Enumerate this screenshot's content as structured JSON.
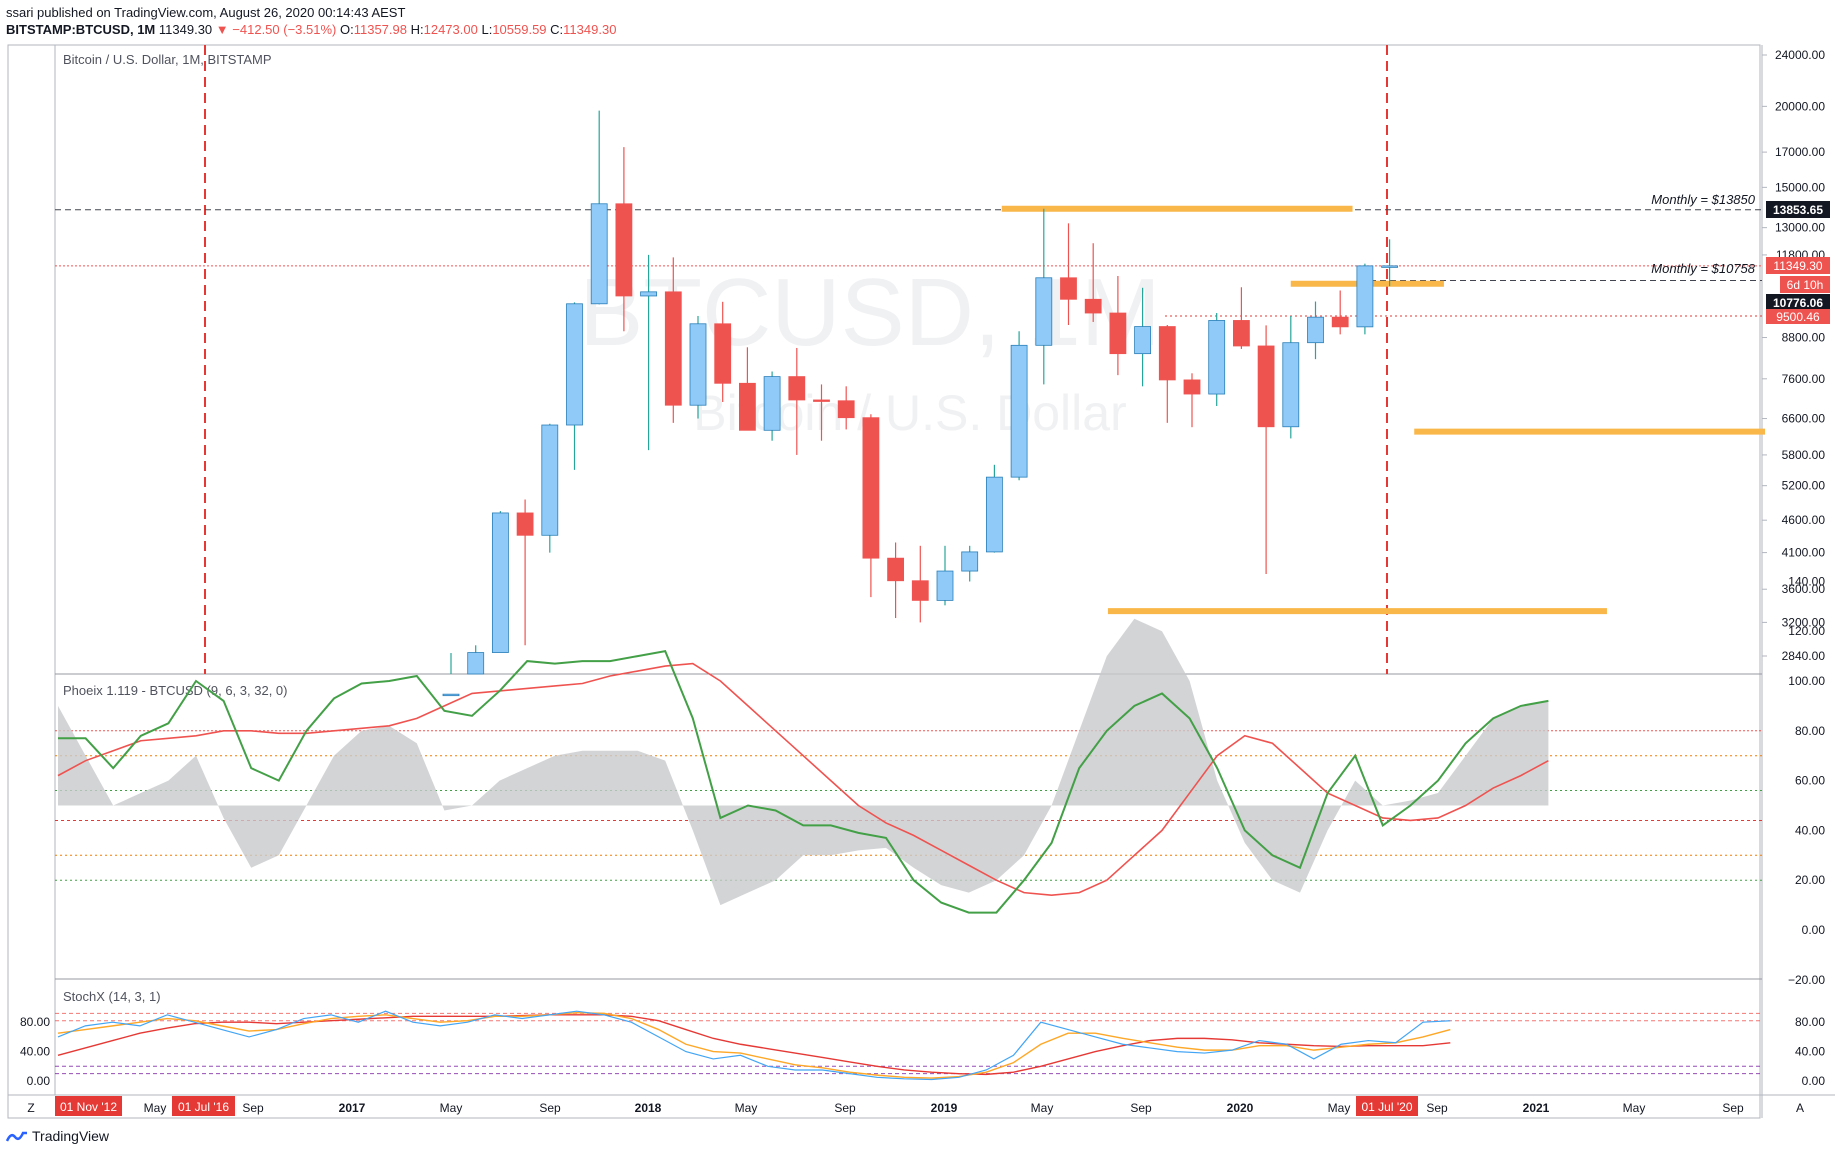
{
  "header": {
    "publisher_line": "ssari published on TradingView.com, August 26, 2020 00:14:43 AEST",
    "symbol": "BITSTAMP:BTCUSD, 1M",
    "last": "11349.30",
    "change": "−412.50 (−3.51%)",
    "o_label": "O:",
    "o": "11357.98",
    "h_label": "H:",
    "h": "12473.00",
    "l_label": "L:",
    "l": "10559.59",
    "c_label": "C:",
    "c": "11349.30"
  },
  "main_pane": {
    "title": "Bitcoin / U.S. Dollar, 1M, BITSTAMP",
    "watermark_symbol": "BTCUSD, 1M",
    "watermark_name": "Bitcoin / U.S. Dollar",
    "price_ticks": [
      "24000.00",
      "20000.00",
      "17000.00",
      "15000.00",
      "13000.00",
      "11800.00",
      "8800.00",
      "7600.00",
      "6600.00",
      "5800.00",
      "5200.00",
      "4600.00",
      "4100.00",
      "3600.00",
      "3200.00",
      "2840.00"
    ],
    "labels": {
      "price_13853": "13853.65",
      "price_11349": "11349.30",
      "countdown": "6d 10h",
      "price_10776": "10776.06",
      "price_9500": "9500.46",
      "annot_13850": "Monthly = $13850",
      "annot_10758": "Monthly = $10758"
    },
    "colors": {
      "bull": "#90caf9",
      "bear": "#ef5350",
      "zone": "#f9b74a"
    }
  },
  "phoenix_pane": {
    "title": "Phoeix 1.119 - BTCUSD (9, 6, 3, 32, 0)",
    "ticks": [
      "140.00",
      "120.00",
      "100.00",
      "80.00",
      "60.00",
      "40.00",
      "20.00",
      "0.00",
      "−20.00"
    ]
  },
  "stoch_pane": {
    "title": "StochX (14, 3, 1)",
    "ticks": [
      "80.00",
      "40.00",
      "0.00"
    ],
    "right_ticks": [
      "80.00",
      "40.00",
      "0.00"
    ]
  },
  "time_axis": {
    "labels": [
      "Z",
      "May",
      "Sep",
      "2017",
      "May",
      "Sep",
      "2018",
      "May",
      "Sep",
      "2019",
      "May",
      "Sep",
      "2020",
      "May",
      "Sep",
      "2021",
      "May",
      "Sep",
      "A"
    ],
    "highlights": [
      "01 Nov '12",
      "01 Jul '16",
      "01 Jul '20"
    ]
  },
  "footer": {
    "brand": "TradingView"
  },
  "chart_data": {
    "type": "candlestick",
    "title": "Bitcoin / U.S. Dollar, 1M, BITSTAMP",
    "period": "1M",
    "x_start": "2016-08",
    "x_end": "2020-08",
    "ohlc": [
      [
        2200,
        2870,
        1850,
        2480
      ],
      [
        2480,
        2950,
        1940,
        2875
      ],
      [
        2875,
        4750,
        2875,
        4720
      ],
      [
        4720,
        4950,
        2950,
        4360
      ],
      [
        4360,
        6480,
        4100,
        6450
      ],
      [
        6450,
        9970,
        5500,
        9920
      ],
      [
        9920,
        19700,
        9900,
        14150
      ],
      [
        14150,
        17300,
        9000,
        10200
      ],
      [
        10200,
        11800,
        5900,
        10350
      ],
      [
        10350,
        11700,
        6500,
        6920
      ],
      [
        6920,
        9500,
        6600,
        9240
      ],
      [
        9240,
        9990,
        7000,
        7480
      ],
      [
        7480,
        8500,
        6400,
        6330
      ],
      [
        6330,
        7800,
        6100,
        7660
      ],
      [
        7660,
        8480,
        5800,
        7050
      ],
      [
        7050,
        7450,
        6100,
        7030
      ],
      [
        7030,
        7400,
        6350,
        6620
      ],
      [
        6620,
        6700,
        3500,
        4020
      ],
      [
        4020,
        4250,
        3250,
        3710
      ],
      [
        3710,
        4200,
        3200,
        3460
      ],
      [
        3460,
        4200,
        3400,
        3840
      ],
      [
        3840,
        4200,
        3700,
        4110
      ],
      [
        4110,
        5600,
        4100,
        5360
      ],
      [
        5360,
        9000,
        5300,
        8560
      ],
      [
        8560,
        13900,
        7450,
        10880
      ],
      [
        10880,
        13200,
        9200,
        10080
      ],
      [
        10080,
        12300,
        9300,
        9600
      ],
      [
        9600,
        10950,
        7700,
        8310
      ],
      [
        8310,
        10500,
        7400,
        9150
      ],
      [
        9150,
        9200,
        6500,
        7570
      ],
      [
        7570,
        7750,
        6400,
        7200
      ],
      [
        7200,
        9600,
        6900,
        9350
      ],
      [
        9350,
        10520,
        8450,
        8540
      ],
      [
        8540,
        9190,
        3800,
        6410
      ],
      [
        6410,
        9500,
        6150,
        8640
      ],
      [
        8640,
        10000,
        8150,
        9460
      ],
      [
        9460,
        10400,
        8900,
        9140
      ],
      [
        9140,
        11440,
        8900,
        11350
      ],
      [
        11350,
        12470,
        10560,
        11350
      ]
    ],
    "horizontal_levels": [
      {
        "label": "Monthly = $13850",
        "value": 13853.65
      },
      {
        "label": "Monthly = $10758",
        "value": 10776.06
      },
      {
        "value": 11349.3
      },
      {
        "value": 9500.46
      }
    ],
    "indicator_phoenix": {
      "name": "Phoeix 1.119 - BTCUSD (9, 6, 3, 32, 0)",
      "green": [
        77,
        77,
        65,
        78,
        83,
        100,
        92,
        65,
        60,
        80,
        93,
        99,
        100,
        102,
        88,
        86,
        96,
        108,
        107,
        108,
        108,
        110,
        112,
        85,
        45,
        50,
        48,
        42,
        42,
        39,
        37,
        20,
        11,
        7,
        7,
        20,
        35,
        65,
        80,
        90,
        95,
        85,
        65,
        40,
        30,
        25,
        55,
        70,
        42,
        50,
        60,
        75,
        85,
        90,
        92
      ],
      "red": [
        62,
        68,
        72,
        76,
        77,
        78,
        80,
        80,
        79,
        79,
        80,
        81,
        82,
        85,
        90,
        95,
        96,
        97,
        98,
        99,
        102,
        104,
        106,
        107,
        100,
        90,
        80,
        70,
        60,
        50,
        43,
        38,
        32,
        26,
        20,
        15,
        14,
        15,
        20,
        30,
        40,
        55,
        70,
        78,
        75,
        65,
        55,
        50,
        45,
        44,
        45,
        50,
        57,
        62,
        68
      ],
      "gray_band": [
        90,
        70,
        50,
        55,
        60,
        70,
        45,
        25,
        30,
        50,
        70,
        80,
        82,
        75,
        48,
        50,
        60,
        65,
        70,
        72,
        72,
        72,
        68,
        40,
        10,
        15,
        20,
        30,
        30,
        32,
        33,
        25,
        18,
        15,
        20,
        30,
        50,
        80,
        110,
        125,
        120,
        100,
        60,
        35,
        20,
        15,
        40,
        60,
        50,
        52,
        55,
        70,
        85,
        90,
        92
      ]
    },
    "indicator_stochx": {
      "name": "StochX (14, 3, 1)",
      "blue": [
        60,
        75,
        80,
        75,
        90,
        80,
        70,
        60,
        70,
        85,
        90,
        80,
        95,
        80,
        75,
        80,
        90,
        85,
        90,
        95,
        90,
        80,
        60,
        40,
        30,
        35,
        20,
        15,
        15,
        10,
        5,
        3,
        2,
        5,
        15,
        35,
        80,
        70,
        60,
        50,
        45,
        40,
        38,
        42,
        55,
        50,
        30,
        50,
        55,
        52,
        80,
        82
      ],
      "orange": [
        65,
        70,
        75,
        80,
        85,
        82,
        75,
        68,
        70,
        78,
        85,
        88,
        90,
        85,
        80,
        82,
        88,
        88,
        90,
        93,
        92,
        85,
        70,
        50,
        40,
        38,
        30,
        22,
        18,
        12,
        8,
        5,
        4,
        6,
        12,
        25,
        50,
        65,
        65,
        58,
        52,
        46,
        42,
        42,
        48,
        48,
        42,
        46,
        50,
        52,
        60,
        70
      ],
      "red": [
        35,
        45,
        55,
        65,
        72,
        78,
        80,
        80,
        78,
        80,
        82,
        84,
        86,
        88,
        88,
        88,
        88,
        89,
        90,
        90,
        90,
        88,
        82,
        70,
        58,
        50,
        44,
        38,
        32,
        26,
        20,
        15,
        12,
        10,
        9,
        12,
        20,
        30,
        40,
        48,
        55,
        58,
        58,
        56,
        52,
        50,
        48,
        47,
        48,
        48,
        48,
        52
      ]
    }
  }
}
